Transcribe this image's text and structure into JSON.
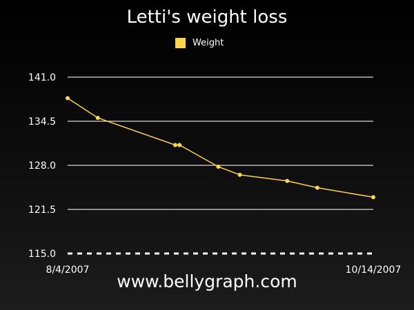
{
  "title": "Letti's weight loss",
  "footer": "www.bellygraph.com",
  "colors": {
    "series": "#ffd54f",
    "grid": "#d9d9d9",
    "text": "#ffffff"
  },
  "chart_data": {
    "type": "line",
    "title": "Letti's weight loss",
    "xlabel": "",
    "ylabel": "",
    "legend": "top-center",
    "grid": true,
    "ylim": [
      115.0,
      141.0
    ],
    "yticks": [
      "141.0",
      "134.5",
      "128.0",
      "121.5",
      "115.0"
    ],
    "xlim": [
      "2007-08-04",
      "2007-10-14"
    ],
    "xticks": [
      "8/4/2007",
      "10/14/2007"
    ],
    "series": [
      {
        "name": "Weight",
        "color": "#ffd54f",
        "points": [
          {
            "x": "2007-08-04",
            "y": 137.9
          },
          {
            "x": "2007-08-11",
            "y": 135.0
          },
          {
            "x": "2007-08-29",
            "y": 131.0
          },
          {
            "x": "2007-08-30",
            "y": 131.0
          },
          {
            "x": "2007-09-08",
            "y": 127.8
          },
          {
            "x": "2007-09-13",
            "y": 126.6
          },
          {
            "x": "2007-09-24",
            "y": 125.7
          },
          {
            "x": "2007-10-01",
            "y": 124.7
          },
          {
            "x": "2007-10-14",
            "y": 123.3
          }
        ]
      }
    ]
  }
}
